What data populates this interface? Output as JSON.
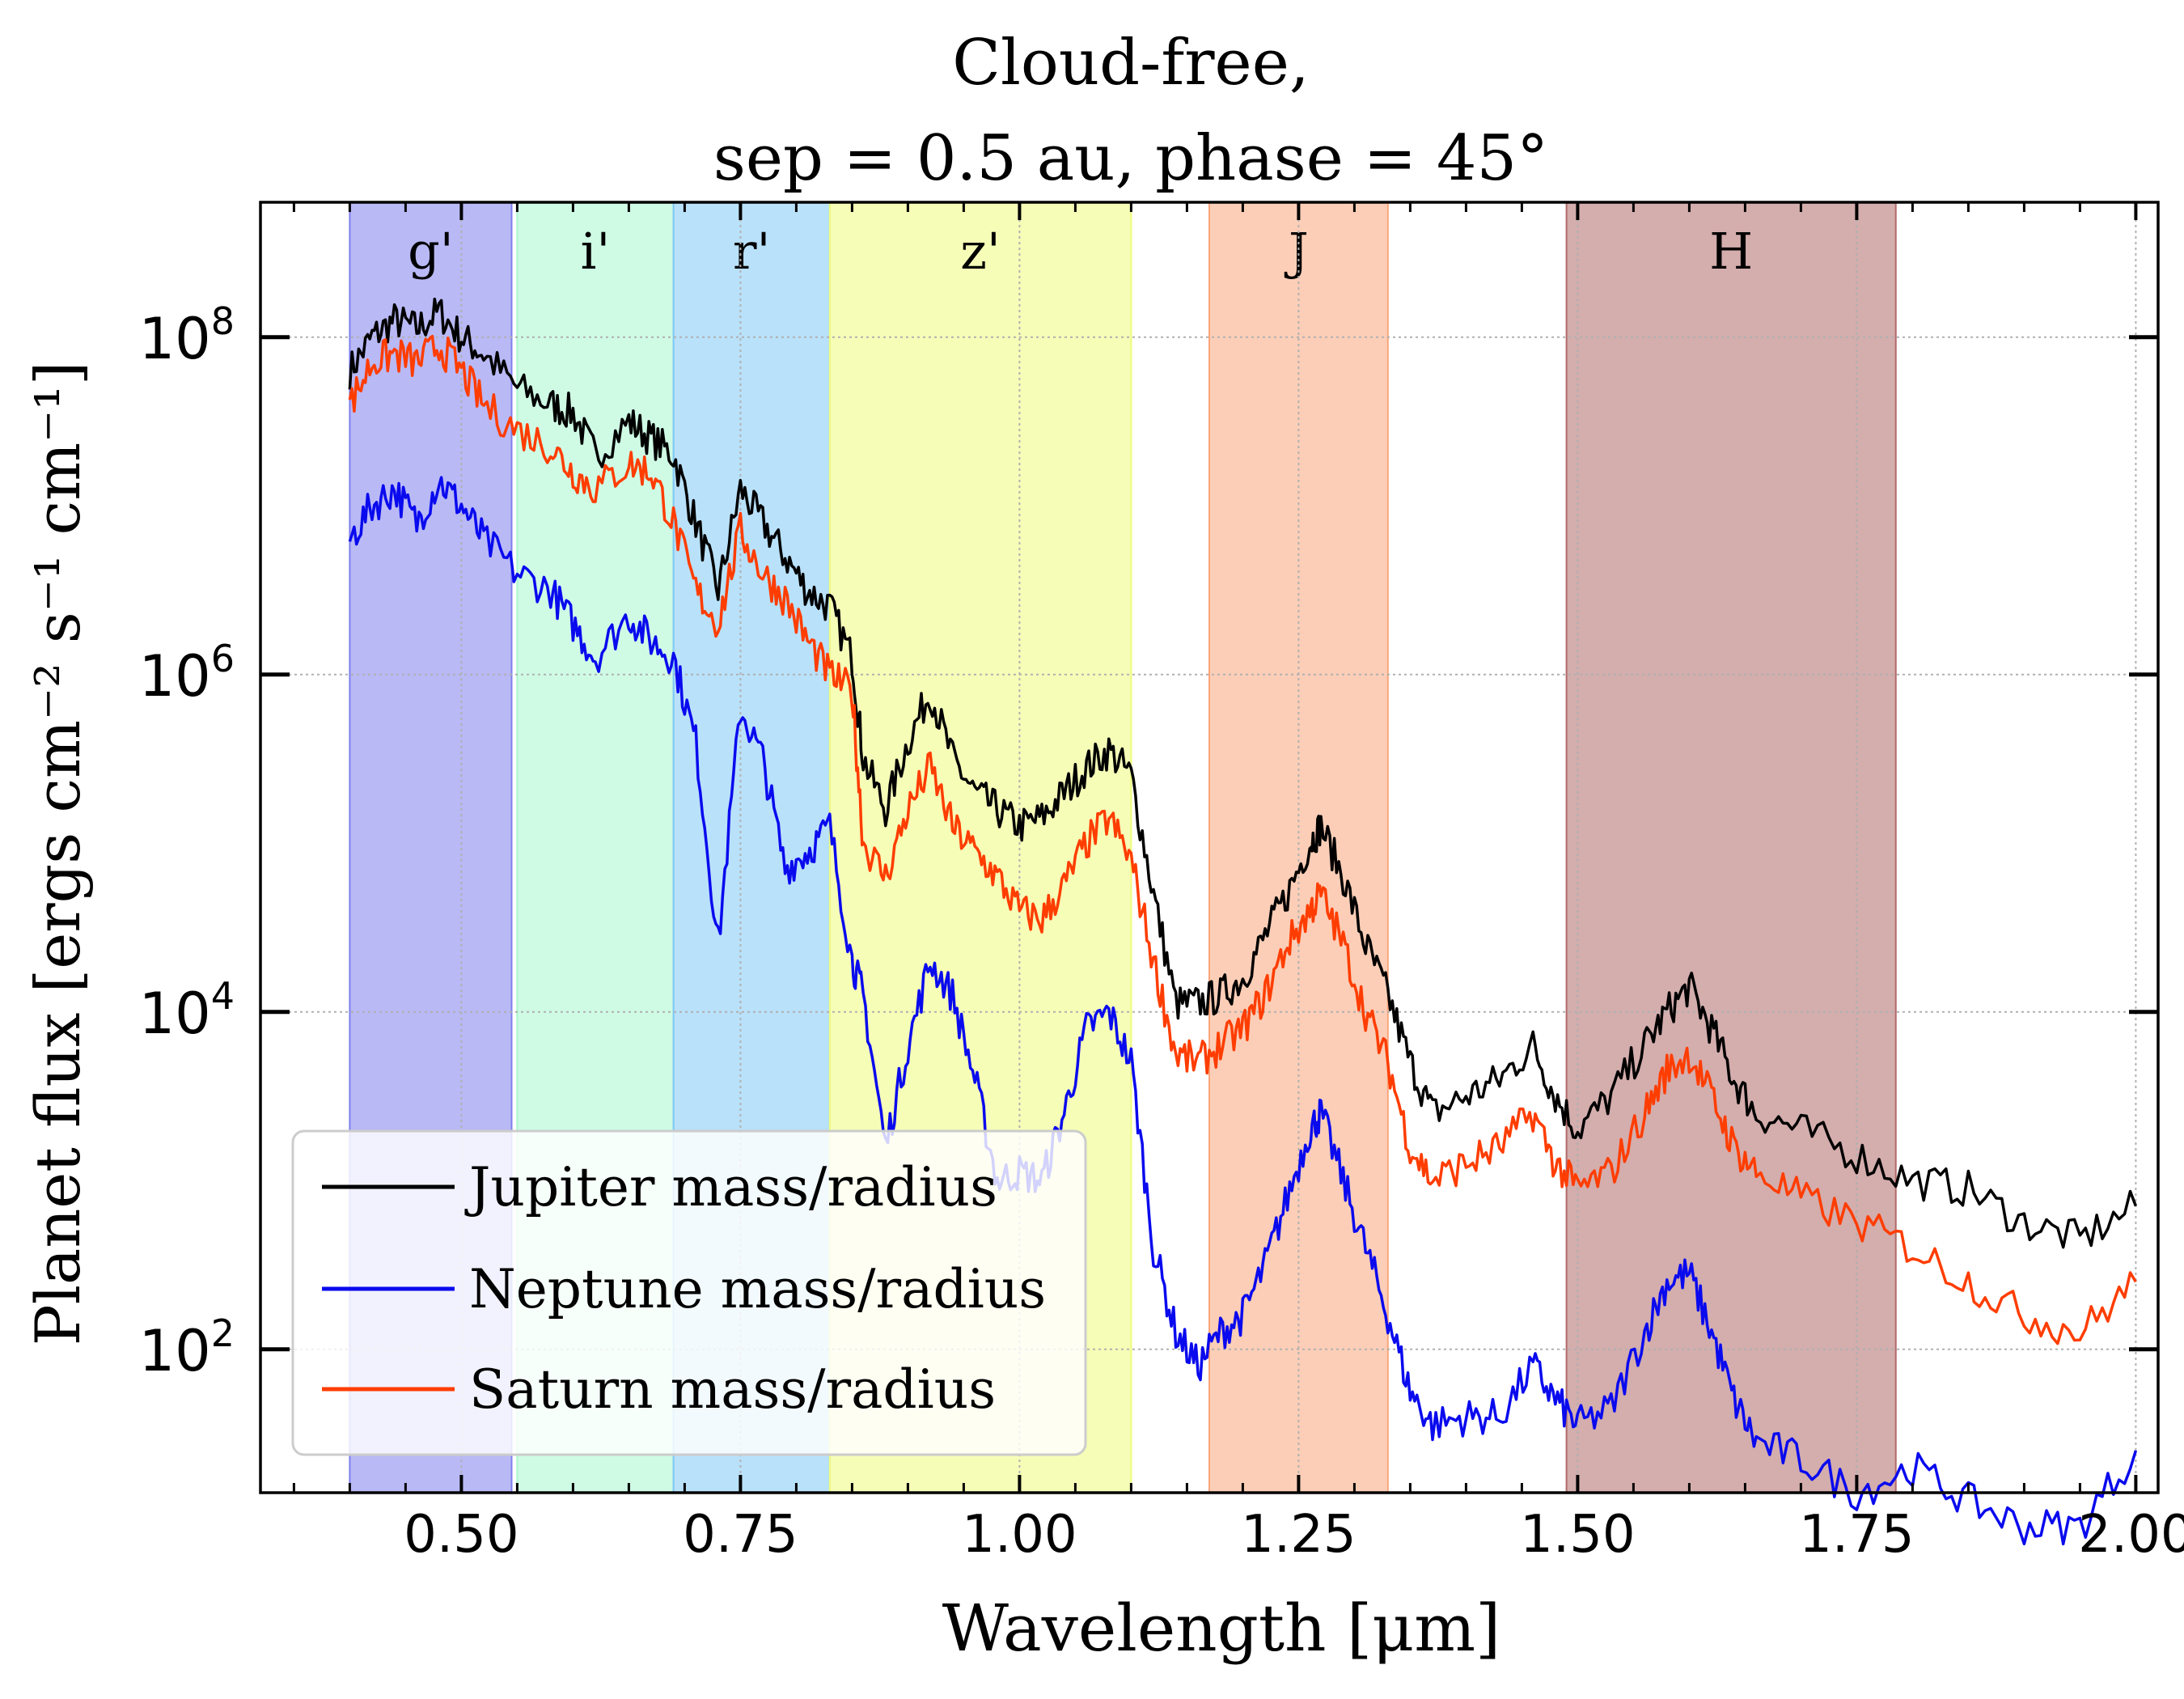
{
  "chart_data": {
    "type": "line",
    "title": [
      "Cloud-free,",
      "sep = 0.5 au, phase = 45°"
    ],
    "xlabel": "Wavelength [μm]",
    "ylabel": "Planet flux [ergs cm⁻² s⁻¹ cm⁻¹]",
    "xlim": [
      0.32,
      2.02
    ],
    "ylim_log10": [
      1.15,
      8.8
    ],
    "y_scale": "log",
    "grid": true,
    "x_ticks": [
      "0.50",
      "0.75",
      "1.00",
      "1.25",
      "1.50",
      "1.75",
      "2.00"
    ],
    "y_ticks": [
      {
        "base": "10",
        "exp": "8"
      },
      {
        "base": "10",
        "exp": "6"
      },
      {
        "base": "10",
        "exp": "4"
      },
      {
        "base": "10",
        "exp": "2"
      }
    ],
    "bands": [
      {
        "label": "g'",
        "x": [
          0.4,
          0.545
        ],
        "color": "#7f7fee"
      },
      {
        "label": "i'",
        "x": [
          0.55,
          0.69
        ],
        "color": "#a8f7cf"
      },
      {
        "label": "r'",
        "x": [
          0.69,
          0.83
        ],
        "color": "#80c8f5"
      },
      {
        "label": "z'",
        "x": [
          0.83,
          1.1
        ],
        "color": "#eefc7c"
      },
      {
        "label": "J",
        "x": [
          1.17,
          1.33
        ],
        "color": "#f9a57b"
      },
      {
        "label": "H",
        "x": [
          1.49,
          1.785
        ],
        "color": "#b06a6a"
      }
    ],
    "legend_position": "lower-left",
    "series": [
      {
        "name": "Jupiter mass/radius",
        "color": "#000000",
        "x": [
          0.4,
          0.42,
          0.44,
          0.46,
          0.48,
          0.5,
          0.52,
          0.55,
          0.58,
          0.6,
          0.62,
          0.65,
          0.67,
          0.69,
          0.71,
          0.73,
          0.75,
          0.77,
          0.79,
          0.81,
          0.83,
          0.85,
          0.86,
          0.88,
          0.9,
          0.92,
          0.94,
          0.96,
          0.98,
          1.0,
          1.02,
          1.04,
          1.06,
          1.08,
          1.1,
          1.12,
          1.14,
          1.16,
          1.18,
          1.2,
          1.22,
          1.24,
          1.26,
          1.27,
          1.29,
          1.31,
          1.33,
          1.35,
          1.37,
          1.4,
          1.43,
          1.46,
          1.48,
          1.5,
          1.53,
          1.56,
          1.58,
          1.6,
          1.62,
          1.64,
          1.66,
          1.7,
          1.75,
          1.8,
          1.85,
          1.9,
          1.95,
          2.0
        ],
        "y_log10": [
          7.8,
          8.0,
          8.1,
          8.05,
          8.15,
          8.0,
          7.9,
          7.7,
          7.6,
          7.55,
          7.3,
          7.5,
          7.4,
          7.3,
          6.9,
          6.5,
          7.1,
          6.9,
          6.7,
          6.5,
          6.4,
          6.1,
          5.5,
          5.2,
          5.6,
          5.9,
          5.5,
          5.3,
          5.2,
          5.1,
          5.15,
          5.3,
          5.45,
          5.55,
          5.4,
          4.7,
          4.05,
          4.05,
          4.1,
          4.2,
          4.45,
          4.7,
          5.0,
          5.1,
          4.8,
          4.4,
          4.1,
          3.7,
          3.4,
          3.5,
          3.6,
          3.8,
          3.5,
          3.3,
          3.5,
          3.8,
          4.0,
          4.15,
          3.9,
          3.6,
          3.4,
          3.3,
          3.15,
          3.0,
          2.95,
          2.75,
          2.65,
          2.85
        ]
      },
      {
        "name": "Neptune mass/radius",
        "color": "#0a0aee",
        "x": [
          0.4,
          0.42,
          0.44,
          0.46,
          0.48,
          0.5,
          0.52,
          0.55,
          0.58,
          0.6,
          0.62,
          0.65,
          0.67,
          0.69,
          0.71,
          0.73,
          0.75,
          0.77,
          0.79,
          0.81,
          0.83,
          0.85,
          0.86,
          0.88,
          0.9,
          0.92,
          0.94,
          0.96,
          0.98,
          1.0,
          1.02,
          1.04,
          1.06,
          1.08,
          1.1,
          1.12,
          1.14,
          1.16,
          1.18,
          1.2,
          1.22,
          1.24,
          1.26,
          1.27,
          1.29,
          1.31,
          1.33,
          1.35,
          1.37,
          1.4,
          1.43,
          1.46,
          1.48,
          1.5,
          1.53,
          1.56,
          1.58,
          1.6,
          1.62,
          1.64,
          1.66,
          1.7,
          1.75,
          1.8,
          1.85,
          1.9,
          1.95,
          2.0
        ],
        "y_log10": [
          6.8,
          7.0,
          7.1,
          6.9,
          7.15,
          7.0,
          6.8,
          6.6,
          6.5,
          6.3,
          6.1,
          6.35,
          6.2,
          6.1,
          5.6,
          4.4,
          5.8,
          5.5,
          4.85,
          4.95,
          5.1,
          4.3,
          4.1,
          3.2,
          3.8,
          4.3,
          4.1,
          3.6,
          3.0,
          3.05,
          3.0,
          3.4,
          3.9,
          4.0,
          3.7,
          2.6,
          2.1,
          1.9,
          2.1,
          2.2,
          2.5,
          2.9,
          3.3,
          3.4,
          3.0,
          2.6,
          2.2,
          1.75,
          1.55,
          1.6,
          1.6,
          1.9,
          1.7,
          1.55,
          1.65,
          2.1,
          2.4,
          2.45,
          2.1,
          1.7,
          1.45,
          1.35,
          1.15,
          1.3,
          1.1,
          0.95,
          0.95,
          1.4
        ]
      },
      {
        "name": "Saturn mass/radius",
        "color": "#ff3d00",
        "x": [
          0.4,
          0.42,
          0.44,
          0.46,
          0.48,
          0.5,
          0.52,
          0.55,
          0.58,
          0.6,
          0.62,
          0.65,
          0.67,
          0.69,
          0.71,
          0.73,
          0.75,
          0.77,
          0.79,
          0.81,
          0.83,
          0.85,
          0.86,
          0.88,
          0.9,
          0.92,
          0.94,
          0.96,
          0.98,
          1.0,
          1.02,
          1.04,
          1.06,
          1.08,
          1.1,
          1.12,
          1.14,
          1.16,
          1.18,
          1.2,
          1.22,
          1.24,
          1.26,
          1.27,
          1.29,
          1.31,
          1.33,
          1.35,
          1.37,
          1.4,
          1.43,
          1.46,
          1.48,
          1.5,
          1.53,
          1.56,
          1.58,
          1.6,
          1.62,
          1.64,
          1.66,
          1.7,
          1.75,
          1.8,
          1.85,
          1.9,
          1.95,
          2.0
        ],
        "y_log10": [
          7.6,
          7.85,
          7.9,
          7.85,
          7.95,
          7.8,
          7.6,
          7.45,
          7.35,
          7.2,
          7.1,
          7.25,
          7.2,
          6.9,
          6.5,
          6.3,
          6.85,
          6.6,
          6.45,
          6.2,
          6.0,
          5.9,
          5.0,
          4.8,
          5.2,
          5.45,
          5.1,
          4.95,
          4.8,
          4.6,
          4.55,
          4.75,
          5.0,
          5.15,
          4.9,
          4.3,
          3.75,
          3.7,
          3.8,
          3.9,
          4.1,
          4.4,
          4.6,
          4.7,
          4.4,
          4.0,
          3.7,
          3.2,
          3.0,
          3.1,
          3.2,
          3.4,
          3.1,
          2.95,
          3.05,
          3.4,
          3.65,
          3.75,
          3.5,
          3.2,
          3.05,
          2.9,
          2.75,
          2.6,
          2.4,
          2.2,
          2.1,
          2.4
        ]
      }
    ]
  }
}
